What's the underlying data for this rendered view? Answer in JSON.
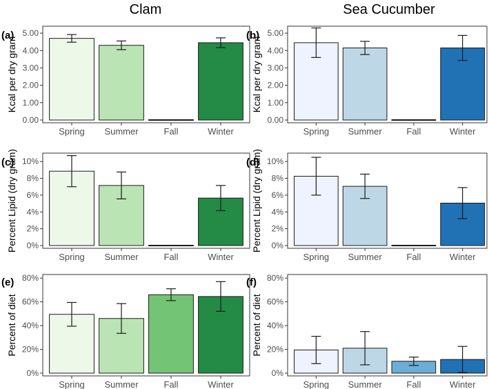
{
  "column_titles": [
    "Clam",
    "Sea Cucumber"
  ],
  "chart_data": [
    {
      "panel": "(a)",
      "type": "bar",
      "column": "Clam",
      "categories": [
        "Spring",
        "Summer",
        "Fall",
        "Winter"
      ],
      "values": [
        4.7,
        4.3,
        0.0,
        4.45
      ],
      "errors": [
        0.22,
        0.25,
        0.0,
        0.28
      ],
      "colors": [
        "#edf8e9",
        "#bae4b3",
        "#74c476",
        "#238b45"
      ],
      "ylabel": "Kcal per dry gram",
      "ylim": [
        0,
        5.4
      ],
      "yticks": [
        0,
        1,
        2,
        3,
        4,
        5
      ],
      "yticklabels": [
        "0.00",
        "1.00",
        "2.00",
        "3.00",
        "4.00",
        "5.00"
      ]
    },
    {
      "panel": "(b)",
      "type": "bar",
      "column": "Sea Cucumber",
      "categories": [
        "Spring",
        "Summer",
        "Fall",
        "Winter"
      ],
      "values": [
        4.45,
        4.15,
        0.0,
        4.15
      ],
      "errors": [
        0.85,
        0.38,
        0.0,
        0.72
      ],
      "colors": [
        "#eff3ff",
        "#bdd7e7",
        "#6baed6",
        "#2171b5"
      ],
      "ylabel": "Kcal per dry gram",
      "ylim": [
        0,
        5.4
      ],
      "yticks": [
        0,
        1,
        2,
        3,
        4,
        5
      ],
      "yticklabels": [
        "0.00",
        "1.00",
        "2.00",
        "3.00",
        "4.00",
        "5.00"
      ]
    },
    {
      "panel": "(c)",
      "type": "bar",
      "column": "Clam",
      "categories": [
        "Spring",
        "Summer",
        "Fall",
        "Winter"
      ],
      "values": [
        8.85,
        7.15,
        0.0,
        5.65
      ],
      "errors": [
        1.85,
        1.6,
        0.0,
        1.5
      ],
      "colors": [
        "#edf8e9",
        "#bae4b3",
        "#74c476",
        "#238b45"
      ],
      "ylabel": "Percent Lipid (dry gram)",
      "ylim": [
        0,
        11
      ],
      "yticks": [
        0,
        2,
        4,
        6,
        8,
        10
      ],
      "yticklabels": [
        "0%",
        "2%",
        "4%",
        "6%",
        "8%",
        "10%"
      ]
    },
    {
      "panel": "(d)",
      "type": "bar",
      "column": "Sea Cucumber",
      "categories": [
        "Spring",
        "Summer",
        "Fall",
        "Winter"
      ],
      "values": [
        8.25,
        7.05,
        0.0,
        5.05
      ],
      "errors": [
        2.25,
        1.45,
        0.0,
        1.85
      ],
      "colors": [
        "#eff3ff",
        "#bdd7e7",
        "#6baed6",
        "#2171b5"
      ],
      "ylabel": "Percent Lipid (dry gram)",
      "ylim": [
        0,
        11
      ],
      "yticks": [
        0,
        2,
        4,
        6,
        8,
        10
      ],
      "yticklabels": [
        "0%",
        "2%",
        "4%",
        "6%",
        "8%",
        "10%"
      ]
    },
    {
      "panel": "(e)",
      "type": "bar",
      "column": "Clam",
      "categories": [
        "Spring",
        "Summer",
        "Fall",
        "Winter"
      ],
      "values": [
        49.5,
        46.0,
        66.0,
        64.5
      ],
      "errors": [
        10.0,
        12.5,
        5.0,
        12.5
      ],
      "colors": [
        "#edf8e9",
        "#bae4b3",
        "#74c476",
        "#238b45"
      ],
      "ylabel": "Percent of diet",
      "ylim": [
        0,
        83
      ],
      "yticks": [
        0,
        20,
        40,
        60,
        80
      ],
      "yticklabels": [
        "0%",
        "20%",
        "40%",
        "60%",
        "80%"
      ]
    },
    {
      "panel": "(f)",
      "type": "bar",
      "column": "Sea Cucumber",
      "categories": [
        "Spring",
        "Summer",
        "Fall",
        "Winter"
      ],
      "values": [
        19.5,
        21.0,
        10.0,
        11.5
      ],
      "errors": [
        11.5,
        14.0,
        3.5,
        11.0
      ],
      "colors": [
        "#eff3ff",
        "#bdd7e7",
        "#6baed6",
        "#2171b5"
      ],
      "ylabel": "Percent of diet",
      "ylim": [
        0,
        83
      ],
      "yticks": [
        0,
        20,
        40,
        60,
        80
      ],
      "yticklabels": [
        "0%",
        "20%",
        "40%",
        "60%",
        "80%"
      ]
    }
  ]
}
